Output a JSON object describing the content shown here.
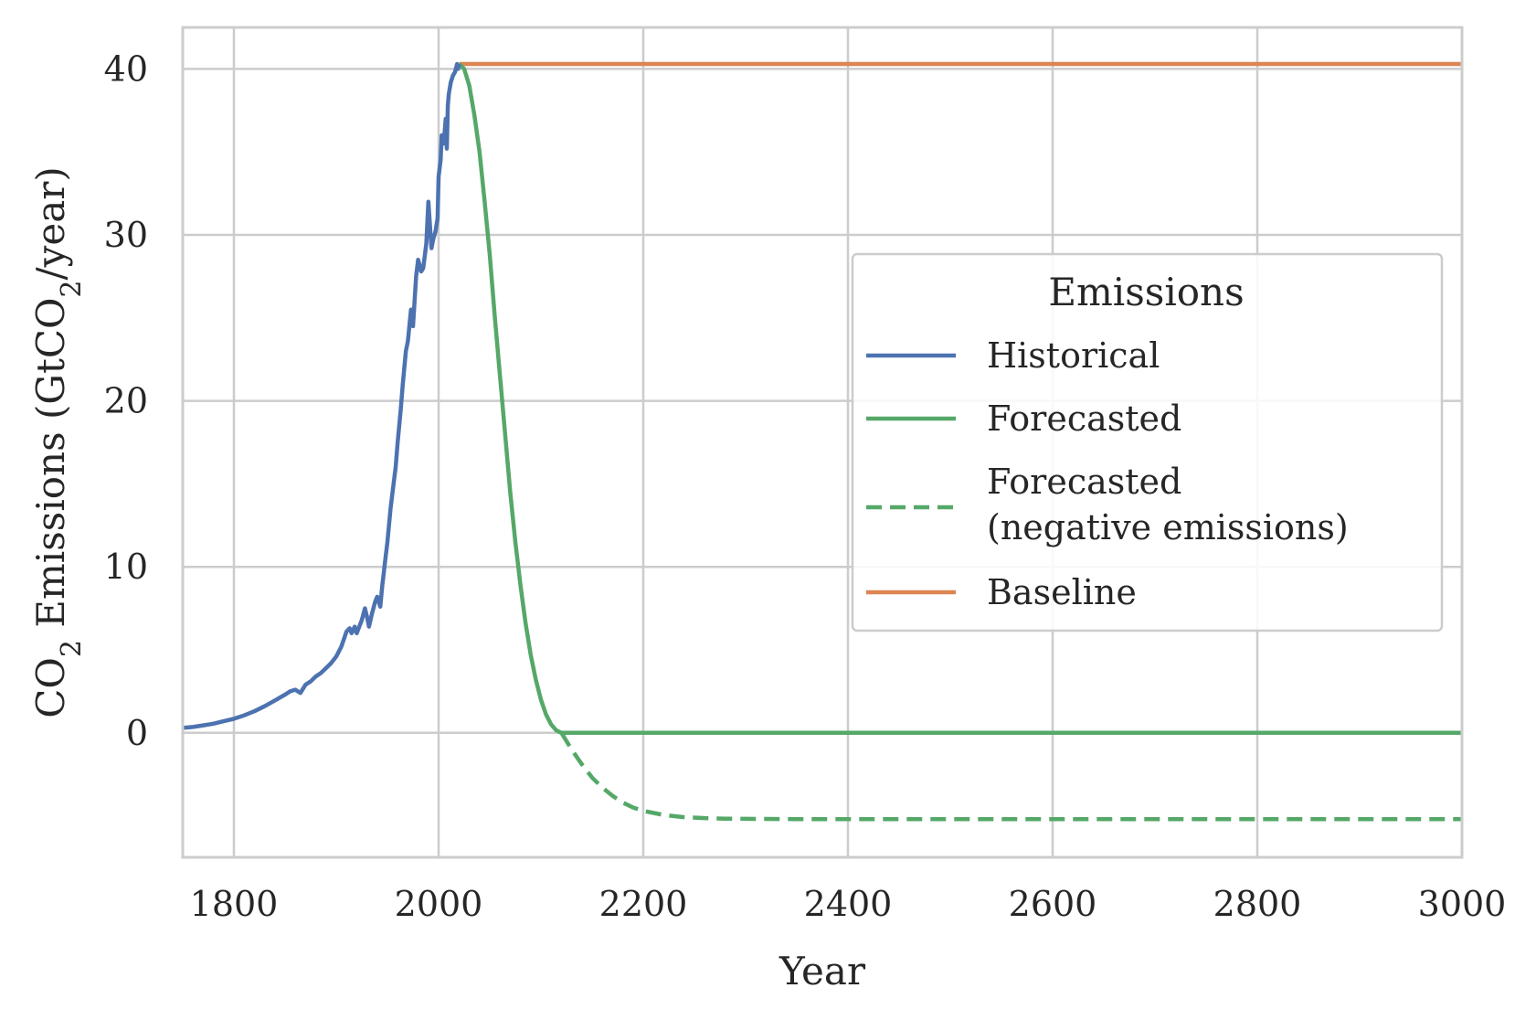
{
  "chart_data": {
    "type": "line",
    "xlabel": "Year",
    "ylabel": {
      "prefix": "CO",
      "sub": "2",
      "mid": " Emissions (GtCO",
      "sub2": "2",
      "suffix": "/year)"
    },
    "xlim": [
      1750,
      3000
    ],
    "ylim": [
      -7.5,
      42.5
    ],
    "xticks": [
      1800,
      2000,
      2200,
      2400,
      2600,
      2800,
      3000
    ],
    "yticks": [
      0,
      10,
      20,
      30,
      40
    ],
    "grid": true,
    "legend": {
      "title": "Emissions",
      "placement": "center-right"
    },
    "colors": {
      "historical": "#4c72b0",
      "forecasted": "#55a868",
      "baseline": "#dd8452",
      "grid": "#cccccc",
      "spine": "#cccccc"
    },
    "series": [
      {
        "name": "Historical",
        "style": "solid",
        "color": "#4c72b0",
        "x": [
          1750,
          1760,
          1770,
          1780,
          1790,
          1800,
          1810,
          1820,
          1830,
          1840,
          1850,
          1855,
          1860,
          1865,
          1870,
          1875,
          1880,
          1885,
          1890,
          1895,
          1900,
          1905,
          1910,
          1913,
          1915,
          1918,
          1920,
          1925,
          1928,
          1930,
          1932,
          1935,
          1938,
          1940,
          1943,
          1945,
          1946,
          1948,
          1950,
          1953,
          1955,
          1958,
          1960,
          1963,
          1965,
          1968,
          1970,
          1973,
          1975,
          1978,
          1980,
          1983,
          1985,
          1988,
          1990,
          1993,
          1995,
          1997,
          1999,
          2000,
          2002,
          2003,
          2005,
          2007,
          2008,
          2009,
          2010,
          2012,
          2014,
          2016,
          2018,
          2019,
          2020
        ],
        "y": [
          0.3,
          0.35,
          0.45,
          0.55,
          0.7,
          0.85,
          1.05,
          1.3,
          1.6,
          1.95,
          2.3,
          2.5,
          2.6,
          2.4,
          2.9,
          3.1,
          3.4,
          3.6,
          3.9,
          4.2,
          4.6,
          5.2,
          6.1,
          6.3,
          6.0,
          6.4,
          6.0,
          6.8,
          7.5,
          7.0,
          6.4,
          7.2,
          7.9,
          8.2,
          7.6,
          8.9,
          9.4,
          10.5,
          11.5,
          13.5,
          14.5,
          16.0,
          17.5,
          19.5,
          21.0,
          23.0,
          23.6,
          25.5,
          24.5,
          27.5,
          28.5,
          27.8,
          28.0,
          29.5,
          32.0,
          29.2,
          29.8,
          30.2,
          31.0,
          33.5,
          34.5,
          36.0,
          35.5,
          37.0,
          35.2,
          37.8,
          38.5,
          39.2,
          39.6,
          39.8,
          40.3,
          40.0,
          40.3
        ]
      },
      {
        "name": "Forecasted",
        "style": "solid",
        "color": "#55a868",
        "x": [
          2020,
          2025,
          2030,
          2035,
          2040,
          2045,
          2050,
          2055,
          2060,
          2065,
          2070,
          2075,
          2080,
          2085,
          2090,
          2095,
          2100,
          2105,
          2110,
          2115,
          2120,
          2125,
          2200,
          2400,
          2600,
          2800,
          3000
        ],
        "y": [
          40.3,
          40.0,
          39.0,
          37.2,
          35.0,
          32.0,
          28.8,
          25.0,
          21.5,
          18.0,
          14.5,
          11.5,
          8.9,
          6.6,
          4.7,
          3.2,
          2.0,
          1.1,
          0.5,
          0.15,
          0,
          0,
          0,
          0,
          0,
          0,
          0
        ]
      },
      {
        "name": "Forecasted\n(negative emissions)",
        "style": "dashed",
        "color": "#55a868",
        "x": [
          2120,
          2130,
          2140,
          2150,
          2160,
          2170,
          2180,
          2190,
          2200,
          2220,
          2240,
          2260,
          2280,
          2300,
          2350,
          2400,
          2600,
          2800,
          3000
        ],
        "y": [
          0,
          -1.0,
          -1.9,
          -2.7,
          -3.3,
          -3.8,
          -4.2,
          -4.5,
          -4.7,
          -4.95,
          -5.08,
          -5.14,
          -5.17,
          -5.18,
          -5.2,
          -5.2,
          -5.2,
          -5.2,
          -5.2
        ]
      },
      {
        "name": "Baseline",
        "style": "solid",
        "color": "#dd8452",
        "x": [
          2020,
          3000
        ],
        "y": [
          40.3,
          40.3
        ]
      }
    ]
  }
}
